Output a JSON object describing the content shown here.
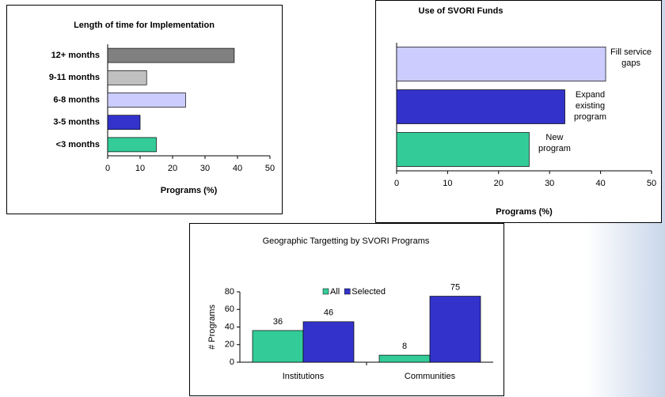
{
  "chart_data": [
    {
      "type": "hbar",
      "title": "Length of time for Implementation",
      "categories": [
        "12+ months",
        "9-11 months",
        "6-8 months",
        "3-5 months",
        "<3 months"
      ],
      "values": [
        39,
        12,
        24,
        10,
        15
      ],
      "colors": [
        "#808080",
        "#c0c0c0",
        "#ccccff",
        "#3333cc",
        "#33cc99"
      ],
      "xlim": [
        0,
        50
      ],
      "xticks": [
        0,
        10,
        20,
        30,
        40,
        50
      ],
      "xlabel": "Programs (%)"
    },
    {
      "type": "hbar-labeled",
      "title": "Use of SVORI Funds",
      "categories": [
        "Fill service gaps",
        "Expand existing program",
        "New program"
      ],
      "values": [
        41,
        33,
        26
      ],
      "colors": [
        "#ccccff",
        "#3333cc",
        "#33cc99"
      ],
      "xlim": [
        0,
        50
      ],
      "xticks": [
        0,
        10,
        20,
        30,
        40,
        50
      ],
      "xlabel": "Programs (%)"
    },
    {
      "type": "grouped-bar",
      "title": "Geographic Targetting by SVORI Programs",
      "categories": [
        "Institutions",
        "Communities"
      ],
      "series": [
        {
          "name": "All",
          "color": "#33cc99",
          "values": [
            36,
            8
          ]
        },
        {
          "name": "Selected",
          "color": "#3333cc",
          "values": [
            46,
            75
          ]
        }
      ],
      "ylim": [
        0,
        80
      ],
      "yticks": [
        0,
        20,
        40,
        60,
        80
      ],
      "ylabel": "# Programs"
    }
  ]
}
